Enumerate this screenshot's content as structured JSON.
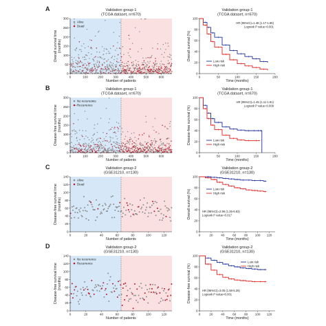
{
  "colors": {
    "alive_point": "#8e8e8e",
    "dead_point": "#c0182a",
    "low_region": "#d6e8f8",
    "high_region": "#fae0e0",
    "low_risk_line": "#1f2f9f",
    "high_risk_line": "#e0221e"
  },
  "panels": [
    {
      "letter": "A",
      "scatter": {
        "title1": "Validation group-1",
        "title2": "(TCGA dataset, n=670)",
        "ylabel": [
          "Overall survival time",
          "(months)"
        ],
        "xlabel": "Number of patients",
        "legend": [
          "Alive",
          "Dead"
        ],
        "xticks": [
          "0",
          "100",
          "200",
          "300",
          "400",
          "500",
          "600"
        ],
        "yticks": [
          "0",
          "50",
          "100",
          "150",
          "200",
          "250",
          "300"
        ]
      },
      "km": {
        "title1": "Validation group-1",
        "title2": "(TCGA dataset, n=670)",
        "ylabel": "Overall survival (%)",
        "xlabel": "Time (months)",
        "stat1": "HR (95%CI)=1.49 (1.17-1.86)",
        "stat2": "Logrank P value=0.001",
        "legend": [
          "Low risk",
          "High risk"
        ],
        "xticks": [
          "0",
          "50",
          "100",
          "150",
          "200"
        ],
        "yticks": [
          "0",
          "20",
          "40",
          "60",
          "80",
          "100"
        ]
      }
    },
    {
      "letter": "B",
      "scatter": {
        "title1": "Validation group-1",
        "title2": "(TCGA dataset, n=670)",
        "ylabel": [
          "Disease-free survival time",
          "(months)"
        ],
        "xlabel": "Number of patients",
        "legend": [
          "No recurrence",
          "Recurrence"
        ],
        "xticks": [
          "0",
          "100",
          "200",
          "300",
          "400",
          "500",
          "600"
        ],
        "yticks": [
          "0",
          "50",
          "100",
          "150",
          "200",
          "250",
          "300"
        ]
      },
      "km": {
        "title1": "Validation group-1",
        "title2": "(TCGA dataset, n=670)",
        "ylabel": "Disease-free survival (%)",
        "xlabel": "Time (months)",
        "stat1": "HR (95%CI)=1.45 (1.11-1.91)",
        "stat2": "Logrank P value=0.008",
        "legend": [
          "Low risk",
          "High risk"
        ],
        "xticks": [
          "0",
          "50",
          "100",
          "150",
          "200"
        ],
        "yticks": [
          "0",
          "20",
          "40",
          "60",
          "80",
          "100"
        ]
      }
    },
    {
      "letter": "C",
      "scatter": {
        "title1": "Validation group-2",
        "title2": "(GSE31210, n=130)",
        "ylabel": [
          "Disease-free survival time",
          "(months)"
        ],
        "xlabel": "Number of patients",
        "legend": [
          "Alive",
          "Dead"
        ],
        "xticks": [
          "0",
          "20",
          "40",
          "60",
          "80",
          "100",
          "120"
        ],
        "yticks": [
          "0",
          "20",
          "40",
          "60",
          "80",
          "100",
          "120",
          "140"
        ]
      },
      "km": {
        "title1": "Validation group-2",
        "title2": "(GSE31210, n=130)",
        "ylabel": "Overall survival (%)",
        "xlabel": "Time (months)",
        "stat1": "HR (95%CI)=2.96 (1.26-6.83)",
        "stat2": "Logrank P value=0.017",
        "legend": [
          "Low risk",
          "High risk"
        ],
        "xticks": [
          "0",
          "20",
          "40",
          "60",
          "80",
          "100",
          "120"
        ],
        "yticks": [
          "0",
          "20",
          "40",
          "60",
          "80",
          "100"
        ]
      }
    },
    {
      "letter": "D",
      "scatter": {
        "title1": "Validation group-2",
        "title2": "(GSE31210, n=130)",
        "ylabel": [
          "Disease-free survival time",
          "(months)"
        ],
        "xlabel": "Number of patients",
        "legend": [
          "No recurrence",
          "Recurrence"
        ],
        "xticks": [
          "0",
          "20",
          "40",
          "60",
          "80",
          "100",
          "120"
        ],
        "yticks": [
          "0",
          "20",
          "40",
          "60",
          "80",
          "100",
          "120",
          "140"
        ]
      },
      "km": {
        "title1": "Validation group-2",
        "title2": "(GSE31210, n=130)",
        "ylabel": "Disease-free survival (%)",
        "xlabel": "Time (months)",
        "stat1": "HR (95%CI)=3.05 (1.58-5.26)",
        "stat2": "Logrank P value<0.001",
        "legend": [
          "Low risk",
          "High risk"
        ],
        "xticks": [
          "0",
          "20",
          "40",
          "60",
          "80",
          "100",
          "120"
        ],
        "yticks": [
          "0",
          "20",
          "40",
          "60",
          "80",
          "100"
        ]
      }
    }
  ],
  "chart_data": [
    {
      "type": "scatter",
      "panel": "A-left",
      "n_points": 670,
      "divider_x": 335,
      "xlim": [
        0,
        670
      ],
      "ylim": [
        0,
        300
      ],
      "seed": 11,
      "low_y_scale": 55,
      "high_y_scale": 40,
      "event_rate_low": 0.22,
      "event_rate_high": 0.38,
      "series": [
        {
          "name": "Alive",
          "color": "#8e8e8e"
        },
        {
          "name": "Dead",
          "color": "#c0182a"
        }
      ]
    },
    {
      "type": "line",
      "panel": "A-right",
      "xlim": [
        0,
        200
      ],
      "ylim": [
        0,
        100
      ],
      "series": [
        {
          "name": "Low risk",
          "color": "#1f2f9f",
          "x": [
            0,
            10,
            20,
            30,
            40,
            60,
            80,
            100,
            120,
            140,
            160,
            180
          ],
          "y": [
            100,
            93,
            84,
            74,
            66,
            52,
            42,
            36,
            31,
            27,
            22,
            20
          ]
        },
        {
          "name": "High risk",
          "color": "#e0221e",
          "x": [
            0,
            10,
            20,
            30,
            40,
            60,
            80,
            100,
            120,
            140,
            160,
            180
          ],
          "y": [
            100,
            88,
            72,
            58,
            48,
            35,
            25,
            18,
            14,
            11,
            8,
            6
          ]
        }
      ]
    },
    {
      "type": "scatter",
      "panel": "B-left",
      "n_points": 670,
      "divider_x": 335,
      "xlim": [
        0,
        670
      ],
      "ylim": [
        0,
        300
      ],
      "seed": 23,
      "low_y_scale": 45,
      "high_y_scale": 35,
      "event_rate_low": 0.25,
      "event_rate_high": 0.4,
      "series": [
        {
          "name": "No recurrence",
          "color": "#8e8e8e"
        },
        {
          "name": "Recurrence",
          "color": "#c0182a"
        }
      ]
    },
    {
      "type": "line",
      "panel": "B-right",
      "xlim": [
        0,
        200
      ],
      "ylim": [
        0,
        100
      ],
      "series": [
        {
          "name": "Low risk",
          "color": "#1f2f9f",
          "x": [
            0,
            10,
            20,
            30,
            40,
            60,
            80,
            100,
            120,
            140,
            150,
            160,
            165
          ],
          "y": [
            100,
            86,
            72,
            62,
            55,
            47,
            43,
            41,
            40,
            40,
            40,
            40,
            0
          ]
        },
        {
          "name": "High risk",
          "color": "#e0221e",
          "x": [
            0,
            10,
            20,
            30,
            40,
            60,
            80,
            100,
            120,
            140,
            160
          ],
          "y": [
            100,
            80,
            62,
            50,
            42,
            32,
            26,
            23,
            22,
            22,
            22
          ]
        }
      ]
    },
    {
      "type": "scatter",
      "panel": "C-left",
      "n_points": 130,
      "divider_x": 65,
      "xlim": [
        0,
        130
      ],
      "ylim": [
        0,
        140
      ],
      "seed": 37,
      "low_y_mean": 60,
      "high_y_mean": 55,
      "y_spread": 22,
      "event_rate_low": 0.05,
      "event_rate_high": 0.15,
      "series": [
        {
          "name": "Alive",
          "color": "#8e8e8e"
        },
        {
          "name": "Dead",
          "color": "#c0182a"
        }
      ]
    },
    {
      "type": "line",
      "panel": "C-right",
      "xlim": [
        0,
        130
      ],
      "ylim": [
        0,
        100
      ],
      "series": [
        {
          "name": "Low risk",
          "color": "#1f2f9f",
          "x": [
            0,
            10,
            20,
            30,
            40,
            50,
            60,
            70,
            80,
            90,
            100,
            110,
            115
          ],
          "y": [
            100,
            100,
            99,
            98,
            97,
            96,
            95,
            94,
            94,
            93,
            93,
            92,
            92
          ]
        },
        {
          "name": "High risk",
          "color": "#e0221e",
          "x": [
            0,
            10,
            20,
            30,
            40,
            50,
            60,
            70,
            80,
            90,
            100,
            110,
            115
          ],
          "y": [
            100,
            98,
            95,
            90,
            86,
            83,
            80,
            78,
            76,
            75,
            74,
            73,
            73
          ]
        }
      ]
    },
    {
      "type": "scatter",
      "panel": "D-left",
      "n_points": 130,
      "divider_x": 65,
      "xlim": [
        0,
        130
      ],
      "ylim": [
        0,
        140
      ],
      "seed": 53,
      "low_y_mean": 55,
      "high_y_mean": 45,
      "y_spread": 25,
      "event_rate_low": 0.25,
      "event_rate_high": 0.45,
      "series": [
        {
          "name": "No recurrence",
          "color": "#8e8e8e"
        },
        {
          "name": "Recurrence",
          "color": "#c0182a"
        }
      ]
    },
    {
      "type": "line",
      "panel": "D-right",
      "xlim": [
        0,
        130
      ],
      "ylim": [
        0,
        100
      ],
      "series": [
        {
          "name": "Low risk",
          "color": "#1f2f9f",
          "x": [
            0,
            10,
            20,
            30,
            40,
            50,
            60,
            70,
            80,
            90,
            100,
            110,
            115
          ],
          "y": [
            100,
            96,
            92,
            88,
            85,
            82,
            80,
            78,
            77,
            76,
            75,
            75,
            75
          ]
        },
        {
          "name": "High risk",
          "color": "#e0221e",
          "x": [
            0,
            10,
            20,
            30,
            40,
            50,
            60,
            70,
            80,
            90,
            100,
            110,
            115
          ],
          "y": [
            100,
            85,
            74,
            66,
            61,
            58,
            56,
            55,
            54,
            53,
            53,
            53,
            53
          ]
        }
      ]
    }
  ]
}
